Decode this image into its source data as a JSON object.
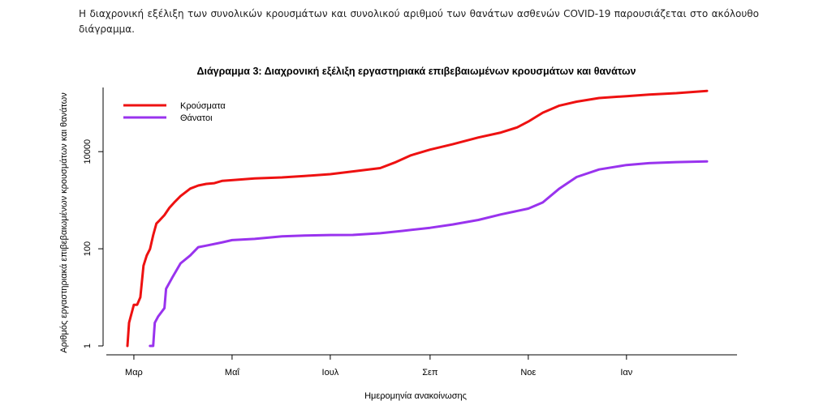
{
  "intro_text": "Η διαχρονική εξέλιξη των συνολικών κρουσμάτων και συνολικού αριθμού των θανάτων ασθενών COVID-19 παρουσιάζεται στο ακόλουθο διάγραμμα.",
  "chart_data": {
    "type": "line",
    "title": "Διάγραμμα 3: Διαχρονική εξέλιξη εργαστηριακά επιβεβαιωμένων κρουσμάτων και θανάτων",
    "xlabel": "Ημερομηνία ανακοίνωσης",
    "ylabel": "Αριθμός εργαστηριακά επιβεβαιωμένων κρουσμάτων και θανάτων",
    "y_scale": "log",
    "ylim": [
      1,
      160000
    ],
    "yticks": [
      1,
      100,
      10000
    ],
    "ytick_labels": [
      "1",
      "100",
      "10000"
    ],
    "x_start": "2020-02-26",
    "x_end": "2021-02-20",
    "xticks": [
      "2020-03-01",
      "2020-05-01",
      "2020-07-01",
      "2020-09-01",
      "2020-11-01",
      "2021-01-01"
    ],
    "xtick_labels": [
      "Μαρ",
      "Μαΐ",
      "Ιουλ",
      "Σεπ",
      "Νοε",
      "Ιαν"
    ],
    "grid": false,
    "legend": "top-left",
    "series": [
      {
        "name": "Κρούσματα",
        "color": "#ee1111",
        "points": [
          [
            "2020-02-26",
            1
          ],
          [
            "2020-02-27",
            3
          ],
          [
            "2020-02-28",
            4
          ],
          [
            "2020-03-01",
            7
          ],
          [
            "2020-03-03",
            7
          ],
          [
            "2020-03-05",
            10
          ],
          [
            "2020-03-07",
            45
          ],
          [
            "2020-03-09",
            73
          ],
          [
            "2020-03-11",
            99
          ],
          [
            "2020-03-13",
            190
          ],
          [
            "2020-03-15",
            331
          ],
          [
            "2020-03-17",
            387
          ],
          [
            "2020-03-20",
            495
          ],
          [
            "2020-03-23",
            695
          ],
          [
            "2020-03-26",
            892
          ],
          [
            "2020-03-30",
            1212
          ],
          [
            "2020-04-05",
            1735
          ],
          [
            "2020-04-10",
            2011
          ],
          [
            "2020-04-15",
            2170
          ],
          [
            "2020-04-20",
            2245
          ],
          [
            "2020-04-25",
            2506
          ],
          [
            "2020-05-01",
            2591
          ],
          [
            "2020-05-15",
            2810
          ],
          [
            "2020-06-01",
            2952
          ],
          [
            "2020-06-15",
            3148
          ],
          [
            "2020-07-01",
            3432
          ],
          [
            "2020-07-15",
            3910
          ],
          [
            "2020-08-01",
            4587
          ],
          [
            "2020-08-10",
            5942
          ],
          [
            "2020-08-20",
            8381
          ],
          [
            "2020-09-01",
            10998
          ],
          [
            "2020-09-15",
            14193
          ],
          [
            "2020-10-01",
            19613
          ],
          [
            "2020-10-15",
            24751
          ],
          [
            "2020-10-25",
            31496
          ],
          [
            "2020-11-01",
            41527
          ],
          [
            "2020-11-10",
            63321
          ],
          [
            "2020-11-20",
            88000
          ],
          [
            "2020-12-01",
            107000
          ],
          [
            "2020-12-15",
            127000
          ],
          [
            "2021-01-01",
            139000
          ],
          [
            "2021-01-15",
            150000
          ],
          [
            "2021-02-01",
            160000
          ],
          [
            "2021-02-20",
            178000
          ]
        ]
      },
      {
        "name": "Θάνατοι",
        "color": "#9933ee",
        "points": [
          [
            "2020-03-11",
            1
          ],
          [
            "2020-03-13",
            1
          ],
          [
            "2020-03-14",
            3
          ],
          [
            "2020-03-16",
            4
          ],
          [
            "2020-03-20",
            6
          ],
          [
            "2020-03-21",
            15
          ],
          [
            "2020-03-25",
            26
          ],
          [
            "2020-03-30",
            50
          ],
          [
            "2020-04-05",
            73
          ],
          [
            "2020-04-10",
            108
          ],
          [
            "2020-04-15",
            116
          ],
          [
            "2020-04-25",
            136
          ],
          [
            "2020-05-01",
            151
          ],
          [
            "2020-05-15",
            160
          ],
          [
            "2020-06-01",
            180
          ],
          [
            "2020-06-15",
            187
          ],
          [
            "2020-07-01",
            192
          ],
          [
            "2020-07-15",
            193
          ],
          [
            "2020-08-01",
            209
          ],
          [
            "2020-08-15",
            234
          ],
          [
            "2020-09-01",
            270
          ],
          [
            "2020-09-15",
            316
          ],
          [
            "2020-10-01",
            393
          ],
          [
            "2020-10-15",
            510
          ],
          [
            "2020-11-01",
            673
          ],
          [
            "2020-11-10",
            900
          ],
          [
            "2020-11-20",
            1700
          ],
          [
            "2020-12-01",
            3000
          ],
          [
            "2020-12-15",
            4300
          ],
          [
            "2021-01-01",
            5300
          ],
          [
            "2021-01-15",
            5800
          ],
          [
            "2021-02-01",
            6100
          ],
          [
            "2021-02-20",
            6300
          ]
        ]
      }
    ]
  }
}
